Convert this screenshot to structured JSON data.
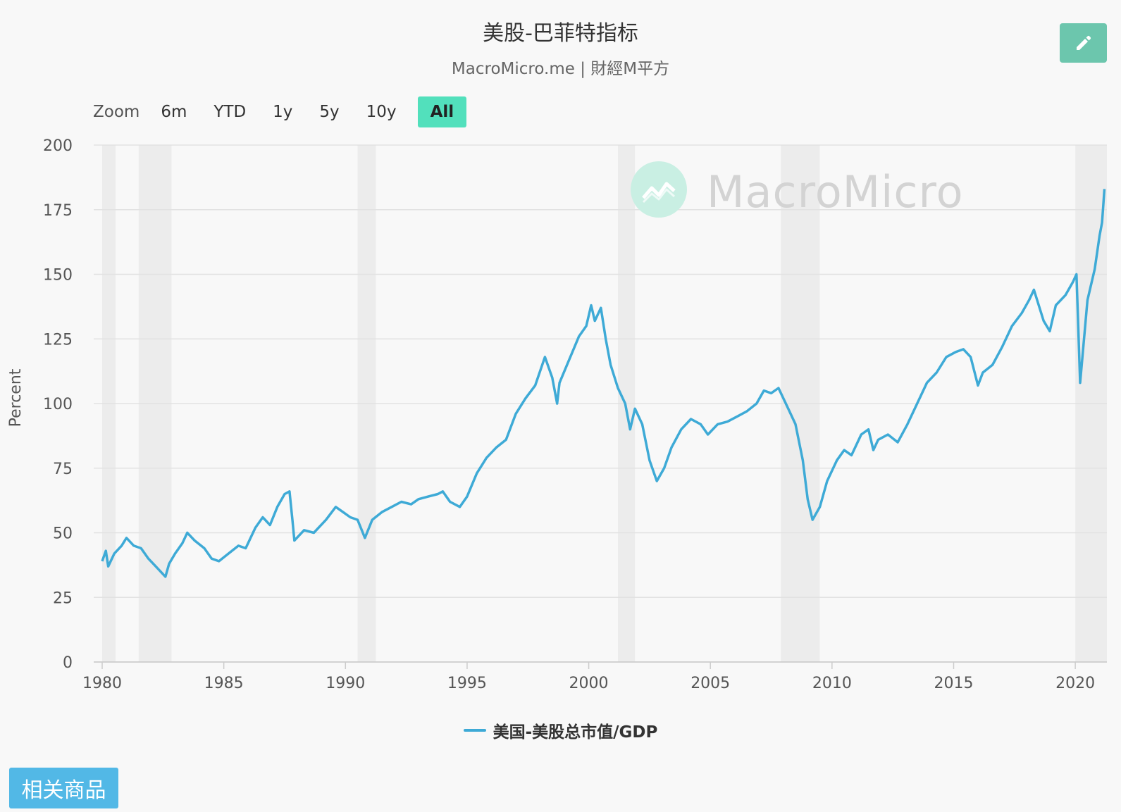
{
  "header": {
    "title": "美股-巴菲特指标",
    "subtitle": "MacroMicro.me | 財經M平方"
  },
  "toolbar": {
    "edit_icon": "pencil-icon",
    "zoom_label": "Zoom",
    "zoom_options": [
      "6m",
      "YTD",
      "1y",
      "5y",
      "10y",
      "All"
    ],
    "zoom_selected": "All"
  },
  "watermark": {
    "text": "MacroMicro",
    "icon": "chart-line-icon"
  },
  "related_button": {
    "label": "相关商品"
  },
  "colors": {
    "line": "#3eaad6",
    "recession_band": "#ececec",
    "active_zoom": "#52e0bc",
    "edit_button": "#6cc6ad",
    "related_button": "#52b8e6"
  },
  "chart_data": {
    "type": "line",
    "title": "美股-巴菲特指标",
    "subtitle": "MacroMicro.me | 財經M平方",
    "ylabel": "Percent",
    "xlabel": "",
    "ylim": [
      0,
      200
    ],
    "yticks": [
      0,
      25,
      50,
      75,
      100,
      125,
      150,
      175,
      200
    ],
    "xlim": [
      1980,
      2021.3
    ],
    "xticks": [
      1980,
      1985,
      1990,
      1995,
      2000,
      2005,
      2010,
      2015,
      2020
    ],
    "grid": true,
    "legend_position": "bottom-center",
    "recession_bands": [
      [
        1980.0,
        1980.55
      ],
      [
        1981.5,
        1982.85
      ],
      [
        1990.5,
        1991.25
      ],
      [
        2001.2,
        2001.9
      ],
      [
        2007.9,
        2009.5
      ],
      [
        2020.0,
        2021.3
      ]
    ],
    "series": [
      {
        "name": "美国-美股总市值/GDP",
        "x": [
          1980.0,
          1980.15,
          1980.25,
          1980.5,
          1980.8,
          1981.0,
          1981.3,
          1981.6,
          1981.9,
          1982.2,
          1982.6,
          1982.75,
          1983.0,
          1983.3,
          1983.5,
          1983.8,
          1984.2,
          1984.5,
          1984.8,
          1985.2,
          1985.6,
          1985.9,
          1986.3,
          1986.6,
          1986.9,
          1987.2,
          1987.5,
          1987.7,
          1987.82,
          1987.9,
          1988.3,
          1988.7,
          1989.2,
          1989.6,
          1989.9,
          1990.2,
          1990.5,
          1990.8,
          1991.1,
          1991.5,
          1991.9,
          1992.3,
          1992.7,
          1993.0,
          1993.4,
          1993.8,
          1994.0,
          1994.3,
          1994.7,
          1995.0,
          1995.4,
          1995.8,
          1996.2,
          1996.6,
          1997.0,
          1997.4,
          1997.8,
          1998.2,
          1998.5,
          1998.7,
          1998.8,
          1999.2,
          1999.6,
          1999.9,
          2000.1,
          2000.25,
          2000.5,
          2000.7,
          2000.9,
          2001.2,
          2001.5,
          2001.7,
          2001.9,
          2002.2,
          2002.5,
          2002.8,
          2003.1,
          2003.4,
          2003.8,
          2004.2,
          2004.6,
          2004.9,
          2005.3,
          2005.7,
          2006.1,
          2006.5,
          2006.9,
          2007.2,
          2007.5,
          2007.8,
          2008.2,
          2008.5,
          2008.8,
          2009.0,
          2009.2,
          2009.5,
          2009.8,
          2010.2,
          2010.5,
          2010.8,
          2011.2,
          2011.5,
          2011.7,
          2011.9,
          2012.3,
          2012.7,
          2013.1,
          2013.5,
          2013.9,
          2014.3,
          2014.7,
          2015.1,
          2015.4,
          2015.7,
          2016.0,
          2016.2,
          2016.6,
          2017.0,
          2017.4,
          2017.8,
          2018.1,
          2018.3,
          2018.7,
          2018.95,
          2019.2,
          2019.6,
          2019.9,
          2020.05,
          2020.2,
          2020.5,
          2020.8,
          2021.0,
          2021.1,
          2021.2
        ],
        "values": [
          39,
          43,
          37,
          42,
          45,
          48,
          45,
          44,
          40,
          37,
          33,
          38,
          42,
          46,
          50,
          47,
          44,
          40,
          39,
          42,
          45,
          44,
          52,
          56,
          53,
          60,
          65,
          66,
          55,
          47,
          51,
          50,
          55,
          60,
          58,
          56,
          55,
          48,
          55,
          58,
          60,
          62,
          61,
          63,
          64,
          65,
          66,
          62,
          60,
          64,
          73,
          79,
          83,
          86,
          96,
          102,
          107,
          118,
          110,
          100,
          108,
          117,
          126,
          130,
          138,
          132,
          137,
          125,
          115,
          106,
          100,
          90,
          98,
          92,
          78,
          70,
          75,
          83,
          90,
          94,
          92,
          88,
          92,
          93,
          95,
          97,
          100,
          105,
          104,
          106,
          98,
          92,
          78,
          63,
          55,
          60,
          70,
          78,
          82,
          80,
          88,
          90,
          82,
          86,
          88,
          85,
          92,
          100,
          108,
          112,
          118,
          120,
          121,
          118,
          107,
          112,
          115,
          122,
          130,
          135,
          140,
          144,
          132,
          128,
          138,
          142,
          147,
          150,
          108,
          140,
          152,
          165,
          170,
          183
        ]
      }
    ]
  }
}
